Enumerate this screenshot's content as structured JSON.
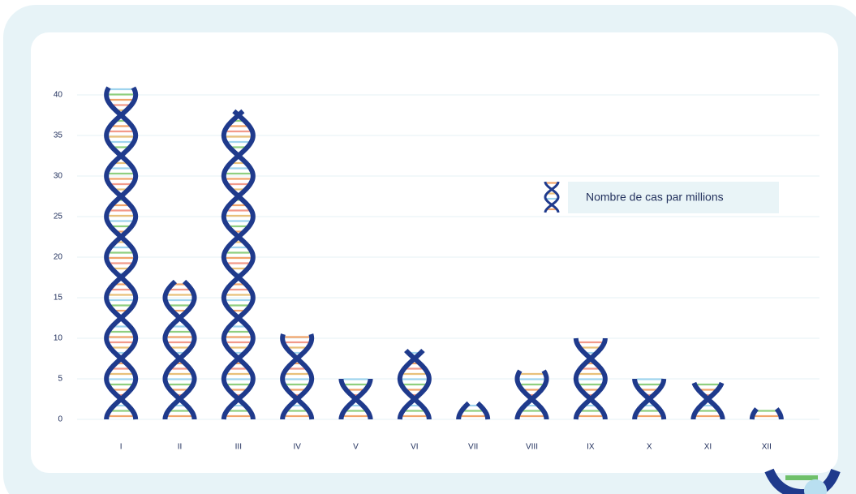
{
  "chart_data": {
    "type": "bar",
    "categories": [
      "I",
      "II",
      "III",
      "IV",
      "V",
      "VI",
      "VII",
      "VIII",
      "IX",
      "X",
      "XI",
      "XII"
    ],
    "series": [
      {
        "name": "Nombre de cas par millions",
        "color": "#1f3a8c",
        "values": [
          41,
          17,
          38,
          10.5,
          5,
          8.5,
          2,
          6,
          10,
          5,
          4.5,
          1.3
        ]
      }
    ],
    "ylim": [
      0,
      40
    ],
    "yticks": [
      0,
      5,
      10,
      15,
      20,
      25,
      30,
      35,
      40
    ],
    "grid": true,
    "legend": "right"
  }
}
